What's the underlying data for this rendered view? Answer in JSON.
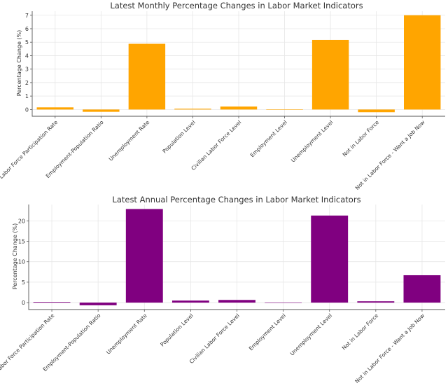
{
  "chart_data": [
    {
      "type": "bar",
      "title": "Latest Monthly Percentage Changes in Labor Market Indicators",
      "xlabel": "",
      "ylabel": "Percentage Change (%)",
      "ylim": [
        -0.5,
        7.3
      ],
      "yticks": [
        0,
        1,
        2,
        3,
        4,
        5,
        6,
        7
      ],
      "grid": true,
      "color": "#FFA500",
      "categories": [
        "Labor Force Participation Rate",
        "Employment-Population Ratio",
        "Unemployment Rate",
        "Population Level",
        "Civilian Labor Force Level",
        "Employment Level",
        "Unemployment Level",
        "Not in Labor Force",
        "Not in Labor Force - Want a Job Now"
      ],
      "values": [
        0.16,
        -0.17,
        4.88,
        0.06,
        0.22,
        0.02,
        5.17,
        -0.2,
        7.0
      ]
    },
    {
      "type": "bar",
      "title": "Latest Annual Percentage Changes in Labor Market Indicators",
      "xlabel": "",
      "ylabel": "Percentage Change (%)",
      "ylim": [
        -1.7,
        24
      ],
      "yticks": [
        0,
        5,
        10,
        15,
        20
      ],
      "grid": true,
      "color": "#800080",
      "categories": [
        "Labor Force Participation Rate",
        "Employment-Population Ratio",
        "Unemployment Rate",
        "Population Level",
        "Civilian Labor Force Level",
        "Employment Level",
        "Unemployment Level",
        "Not in Labor Force",
        "Not in Labor Force - Want a Job Now"
      ],
      "values": [
        0.16,
        -0.65,
        22.9,
        0.5,
        0.65,
        0.05,
        21.3,
        0.32,
        6.7
      ]
    }
  ]
}
